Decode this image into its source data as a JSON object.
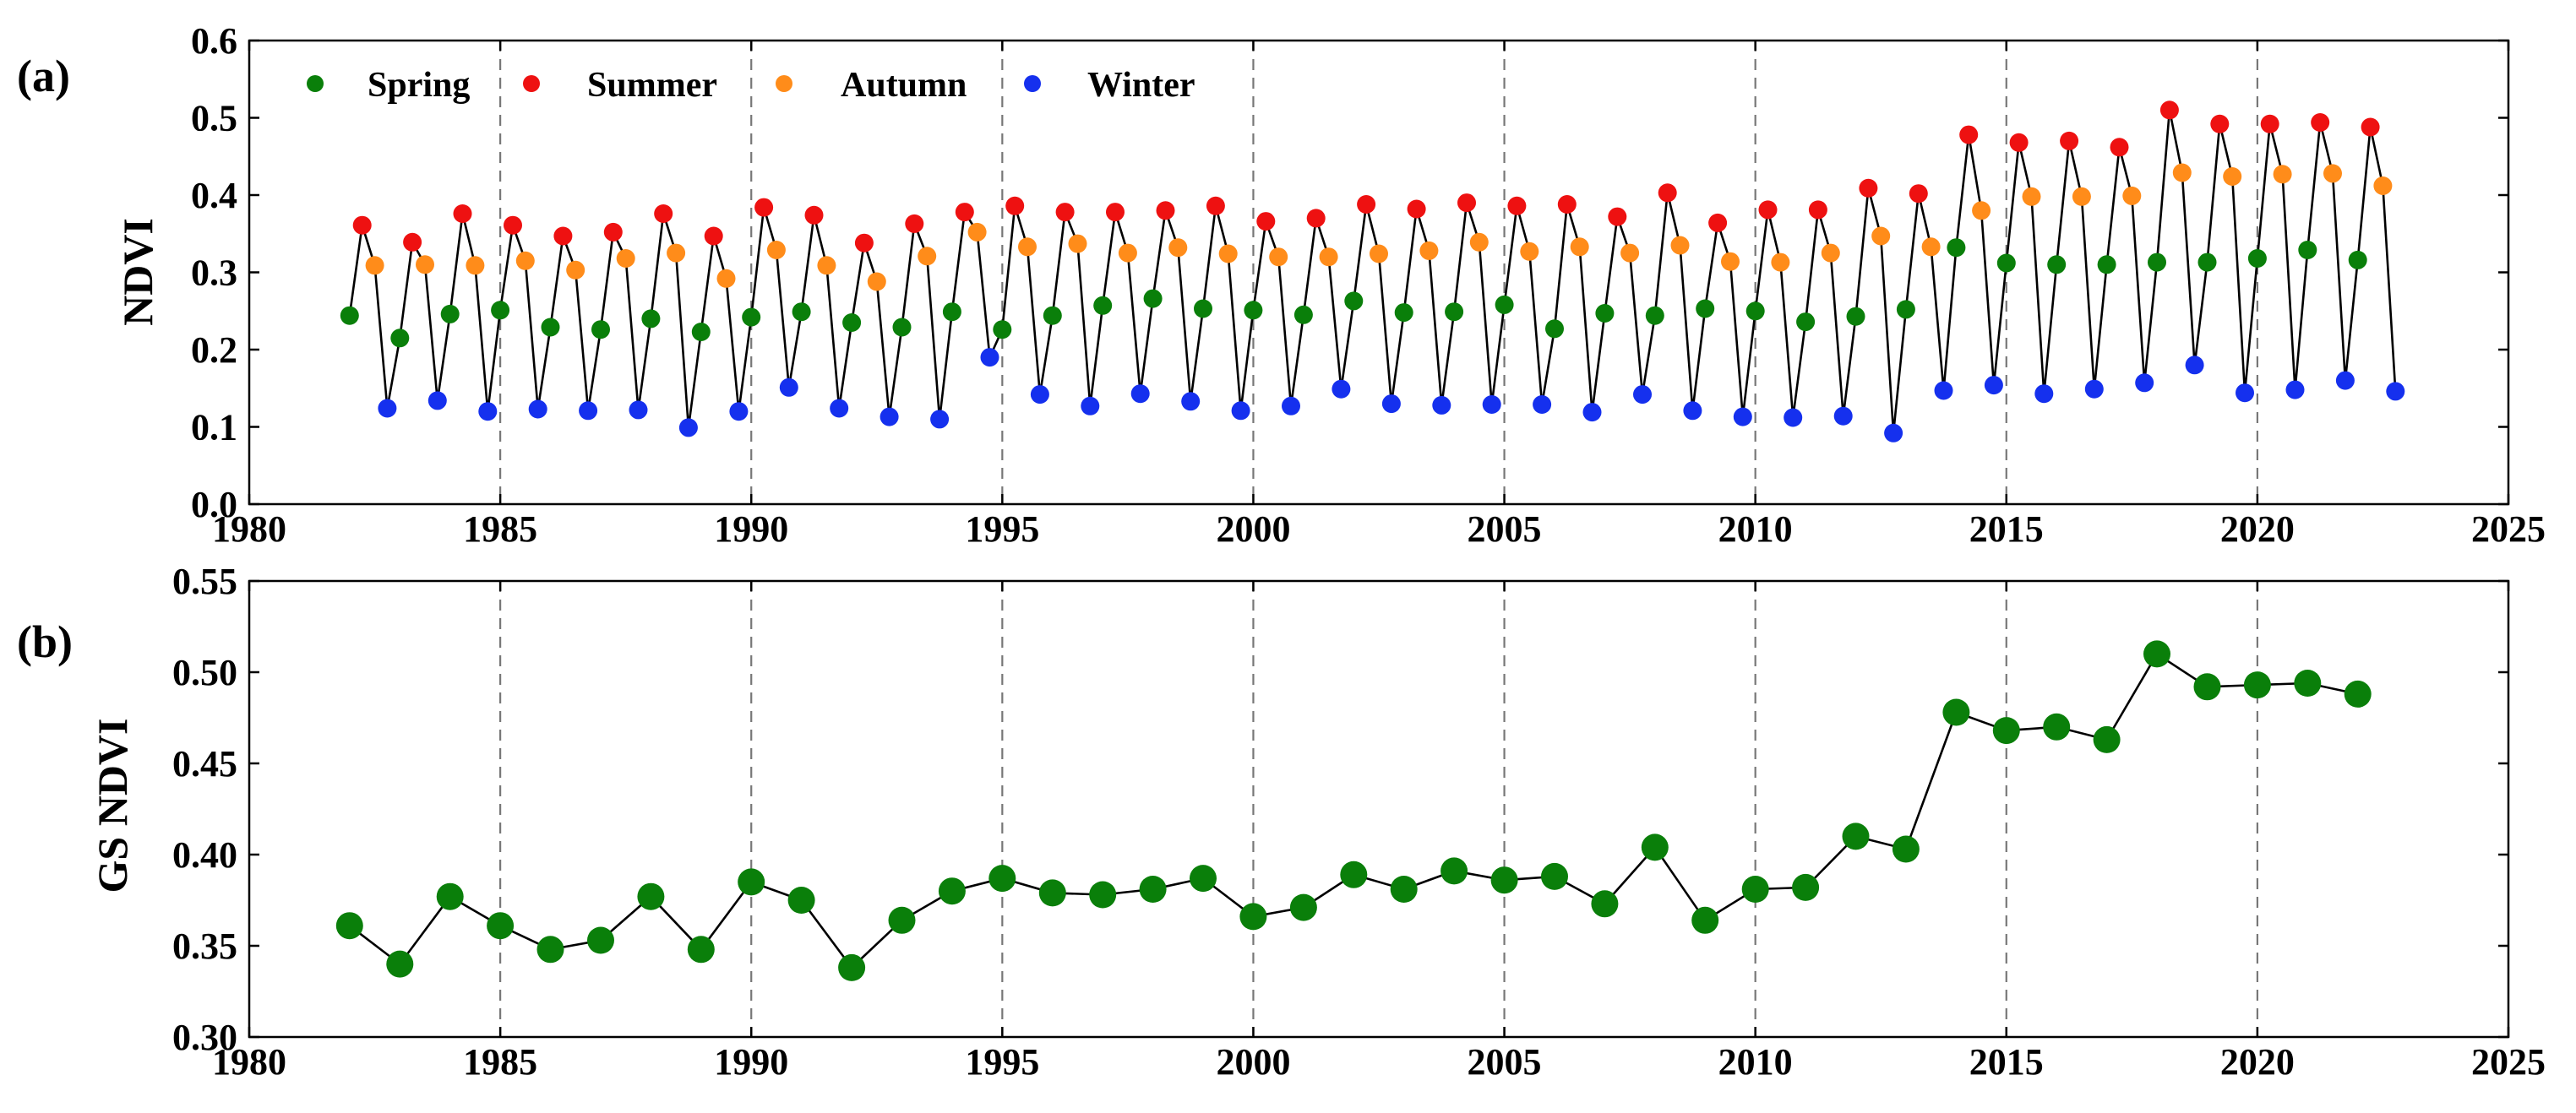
{
  "chart_data": [
    {
      "type": "scatter",
      "panel_label": "(a)",
      "ylabel": "NDVI",
      "xlim": [
        1980,
        2025
      ],
      "ylim": [
        0.0,
        0.6
      ],
      "xticks": [
        1980,
        1985,
        1990,
        1995,
        2000,
        2005,
        2010,
        2015,
        2020,
        2025
      ],
      "yticks": [
        0.0,
        0.1,
        0.2,
        0.3,
        0.4,
        0.5,
        0.6
      ],
      "xtick_labels": [
        "1980",
        "1985",
        "1990",
        "1995",
        "2000",
        "2005",
        "2010",
        "2015",
        "2020",
        "2025"
      ],
      "ytick_labels": [
        "0.0",
        "0.1",
        "0.2",
        "0.3",
        "0.4",
        "0.5",
        "0.6"
      ],
      "vlines": [
        1985,
        1990,
        1995,
        2000,
        2005,
        2010,
        2015,
        2020
      ],
      "legend_position": "top-left",
      "connect_line": true,
      "season_offsets": [
        0,
        0.25,
        0.5,
        0.75
      ],
      "years": [
        1982,
        1983,
        1984,
        1985,
        1986,
        1987,
        1988,
        1989,
        1990,
        1991,
        1992,
        1993,
        1994,
        1995,
        1996,
        1997,
        1998,
        1999,
        2000,
        2001,
        2002,
        2003,
        2004,
        2005,
        2006,
        2007,
        2008,
        2009,
        2010,
        2011,
        2012,
        2013,
        2014,
        2015,
        2016,
        2017,
        2018,
        2019,
        2020,
        2021,
        2022
      ],
      "series": [
        {
          "name": "Spring",
          "color": "#0a7f0a",
          "values": [
            0.244,
            0.215,
            0.246,
            0.251,
            0.229,
            0.226,
            0.24,
            0.223,
            0.242,
            0.249,
            0.235,
            0.229,
            0.249,
            0.226,
            0.244,
            0.257,
            0.266,
            0.253,
            0.251,
            0.245,
            0.263,
            0.248,
            0.249,
            0.258,
            0.227,
            0.247,
            0.244,
            0.253,
            0.25,
            0.236,
            0.243,
            0.252,
            0.332,
            0.312,
            0.31,
            0.31,
            0.313,
            0.313,
            0.318,
            0.329,
            0.316
          ]
        },
        {
          "name": "Summer",
          "color": "#ee1111",
          "values": [
            0.361,
            0.339,
            0.376,
            0.361,
            0.347,
            0.352,
            0.376,
            0.347,
            0.384,
            0.374,
            0.338,
            0.363,
            0.378,
            0.386,
            0.378,
            0.378,
            0.38,
            0.386,
            0.366,
            0.37,
            0.388,
            0.382,
            0.39,
            0.386,
            0.388,
            0.372,
            0.403,
            0.364,
            0.381,
            0.381,
            0.409,
            0.402,
            0.478,
            0.468,
            0.47,
            0.462,
            0.51,
            0.492,
            0.492,
            0.494,
            0.488
          ]
        },
        {
          "name": "Autumn",
          "color": "#ff8c1a",
          "values": [
            0.309,
            0.31,
            0.309,
            0.315,
            0.303,
            0.318,
            0.325,
            0.292,
            0.329,
            0.309,
            0.288,
            0.321,
            0.352,
            0.333,
            0.337,
            0.325,
            0.332,
            0.324,
            0.32,
            0.32,
            0.324,
            0.328,
            0.339,
            0.327,
            0.333,
            0.325,
            0.335,
            0.314,
            0.313,
            0.325,
            0.347,
            0.333,
            0.38,
            0.398,
            0.398,
            0.399,
            0.429,
            0.424,
            0.427,
            0.428,
            0.412
          ]
        },
        {
          "name": "Winter",
          "color": "#1530ee",
          "values": [
            0.124,
            0.134,
            0.12,
            0.123,
            0.121,
            0.122,
            0.099,
            0.12,
            0.151,
            0.124,
            0.113,
            0.11,
            0.19,
            0.142,
            0.127,
            0.143,
            0.133,
            0.121,
            0.127,
            0.149,
            0.13,
            0.128,
            0.129,
            0.129,
            0.119,
            0.142,
            0.121,
            0.113,
            0.112,
            0.114,
            0.092,
            0.147,
            0.154,
            0.143,
            0.149,
            0.157,
            0.18,
            0.144,
            0.148,
            0.16,
            0.146
          ]
        }
      ]
    },
    {
      "type": "line",
      "panel_label": "(b)",
      "ylabel": "GS NDVI",
      "xlim": [
        1980,
        2025
      ],
      "ylim": [
        0.3,
        0.55
      ],
      "xticks": [
        1980,
        1985,
        1990,
        1995,
        2000,
        2005,
        2010,
        2015,
        2020,
        2025
      ],
      "yticks": [
        0.3,
        0.35,
        0.4,
        0.45,
        0.5,
        0.55
      ],
      "xtick_labels": [
        "1980",
        "1985",
        "1990",
        "1995",
        "2000",
        "2005",
        "2010",
        "2015",
        "2020",
        "2025"
      ],
      "ytick_labels": [
        "0.30",
        "0.35",
        "0.40",
        "0.45",
        "0.50",
        "0.55"
      ],
      "vlines": [
        1985,
        1990,
        1995,
        2000,
        2005,
        2010,
        2015,
        2020
      ],
      "series": [
        {
          "name": "GS NDVI",
          "color": "#0a7f0a",
          "x": [
            1982,
            1983,
            1984,
            1985,
            1986,
            1987,
            1988,
            1989,
            1990,
            1991,
            1992,
            1993,
            1994,
            1995,
            1996,
            1997,
            1998,
            1999,
            2000,
            2001,
            2002,
            2003,
            2004,
            2005,
            2006,
            2007,
            2008,
            2009,
            2010,
            2011,
            2012,
            2013,
            2014,
            2015,
            2016,
            2017,
            2018,
            2019,
            2020,
            2021,
            2022
          ],
          "values": [
            0.361,
            0.34,
            0.377,
            0.361,
            0.348,
            0.353,
            0.377,
            0.348,
            0.385,
            0.375,
            0.338,
            0.364,
            0.38,
            0.387,
            0.379,
            0.378,
            0.381,
            0.387,
            0.366,
            0.371,
            0.389,
            0.381,
            0.391,
            0.386,
            0.388,
            0.373,
            0.404,
            0.364,
            0.381,
            0.382,
            0.41,
            0.403,
            0.478,
            0.468,
            0.47,
            0.463,
            0.51,
            0.492,
            0.493,
            0.494,
            0.488
          ]
        }
      ]
    }
  ]
}
